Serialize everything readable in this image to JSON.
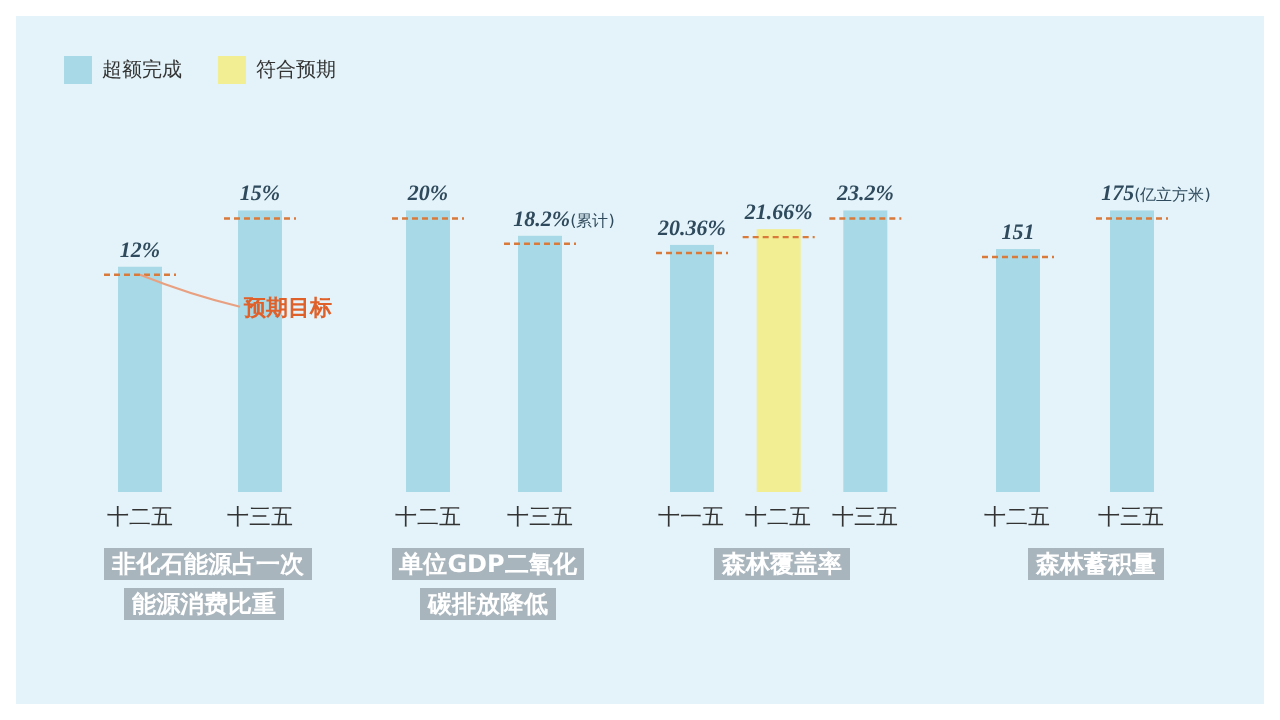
{
  "chart_data": [
    {
      "type": "bar",
      "xlabel": "非化石能源占一次能源消费比重",
      "categories": [
        "十二五",
        "十三五"
      ],
      "stacked": true,
      "legend": "top left",
      "tick_labels": "x",
      "annotations": [
        {
          "text": "预期目标",
          "x": "十二五",
          "y": 12
        }
      ],
      "series": [
        {
          "name": "超额完成",
          "color": "#a8d9e7",
          "values": [
            12,
            15
          ],
          "value_labels": [
            "12%",
            "15%"
          ]
        },
        {
          "name": "符合预期",
          "color": "#f2ee93",
          "values": [
            null,
            null
          ],
          "value_labels": [
            null,
            null
          ]
        }
      ]
    },
    {
      "type": "bar",
      "xlabel": "单位GDP二氧化碳排放降低",
      "categories": [
        "十二五",
        "十三五"
      ],
      "stacked": true,
      "tick_labels": "x",
      "series": [
        {
          "color": "#a8d9e7",
          "values": [
            20,
            18.2
          ],
          "value_labels": [
            "20%",
            "18.2%(累计)"
          ]
        },
        {
          "color": "#f2ee93",
          "values": [
            null,
            null
          ],
          "value_labels": [
            null,
            null
          ]
        }
      ]
    },
    {
      "type": "bar",
      "xlabel": "森林覆盖率",
      "categories": [
        "十一五",
        "十二五",
        "十三五"
      ],
      "stacked": true,
      "tick_labels": "x",
      "series": [
        {
          "color": "#a8d9e7",
          "values": [
            20.36,
            null,
            23.2
          ],
          "value_labels": [
            "20.36%",
            null,
            "23.2%"
          ]
        },
        {
          "color": "#f2ee93",
          "values": [
            null,
            21.66,
            null
          ],
          "value_labels": [
            null,
            "21.66%",
            null
          ]
        }
      ]
    },
    {
      "type": "bar",
      "xlabel": "森林蓄积量",
      "categories": [
        "十二五",
        "十三五"
      ],
      "stacked": true,
      "tick_labels": "x",
      "series": [
        {
          "color": "#a8d9e7",
          "values": [
            151,
            175
          ],
          "value_labels": [
            "151",
            "175(亿立方米)"
          ]
        },
        {
          "color": "#f2ee93",
          "values": [
            null,
            null
          ],
          "value_labels": [
            null,
            null
          ]
        }
      ]
    }
  ]
}
